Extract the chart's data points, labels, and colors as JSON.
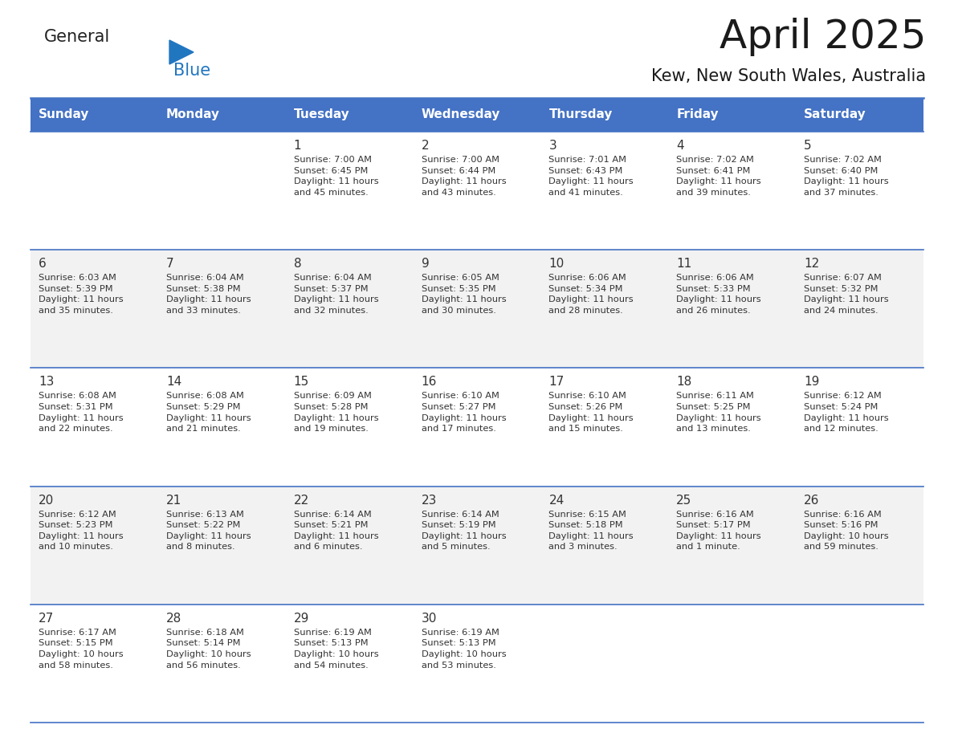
{
  "title": "April 2025",
  "subtitle": "Kew, New South Wales, Australia",
  "header_color": "#4472C4",
  "header_text_color": "#FFFFFF",
  "row_colors": [
    "#FFFFFF",
    "#F2F2F2"
  ],
  "text_color": "#333333",
  "border_color": "#4472C4",
  "days_of_week": [
    "Sunday",
    "Monday",
    "Tuesday",
    "Wednesday",
    "Thursday",
    "Friday",
    "Saturday"
  ],
  "weeks": [
    [
      {
        "day": "",
        "info": ""
      },
      {
        "day": "",
        "info": ""
      },
      {
        "day": "1",
        "info": "Sunrise: 7:00 AM\nSunset: 6:45 PM\nDaylight: 11 hours\nand 45 minutes."
      },
      {
        "day": "2",
        "info": "Sunrise: 7:00 AM\nSunset: 6:44 PM\nDaylight: 11 hours\nand 43 minutes."
      },
      {
        "day": "3",
        "info": "Sunrise: 7:01 AM\nSunset: 6:43 PM\nDaylight: 11 hours\nand 41 minutes."
      },
      {
        "day": "4",
        "info": "Sunrise: 7:02 AM\nSunset: 6:41 PM\nDaylight: 11 hours\nand 39 minutes."
      },
      {
        "day": "5",
        "info": "Sunrise: 7:02 AM\nSunset: 6:40 PM\nDaylight: 11 hours\nand 37 minutes."
      }
    ],
    [
      {
        "day": "6",
        "info": "Sunrise: 6:03 AM\nSunset: 5:39 PM\nDaylight: 11 hours\nand 35 minutes."
      },
      {
        "day": "7",
        "info": "Sunrise: 6:04 AM\nSunset: 5:38 PM\nDaylight: 11 hours\nand 33 minutes."
      },
      {
        "day": "8",
        "info": "Sunrise: 6:04 AM\nSunset: 5:37 PM\nDaylight: 11 hours\nand 32 minutes."
      },
      {
        "day": "9",
        "info": "Sunrise: 6:05 AM\nSunset: 5:35 PM\nDaylight: 11 hours\nand 30 minutes."
      },
      {
        "day": "10",
        "info": "Sunrise: 6:06 AM\nSunset: 5:34 PM\nDaylight: 11 hours\nand 28 minutes."
      },
      {
        "day": "11",
        "info": "Sunrise: 6:06 AM\nSunset: 5:33 PM\nDaylight: 11 hours\nand 26 minutes."
      },
      {
        "day": "12",
        "info": "Sunrise: 6:07 AM\nSunset: 5:32 PM\nDaylight: 11 hours\nand 24 minutes."
      }
    ],
    [
      {
        "day": "13",
        "info": "Sunrise: 6:08 AM\nSunset: 5:31 PM\nDaylight: 11 hours\nand 22 minutes."
      },
      {
        "day": "14",
        "info": "Sunrise: 6:08 AM\nSunset: 5:29 PM\nDaylight: 11 hours\nand 21 minutes."
      },
      {
        "day": "15",
        "info": "Sunrise: 6:09 AM\nSunset: 5:28 PM\nDaylight: 11 hours\nand 19 minutes."
      },
      {
        "day": "16",
        "info": "Sunrise: 6:10 AM\nSunset: 5:27 PM\nDaylight: 11 hours\nand 17 minutes."
      },
      {
        "day": "17",
        "info": "Sunrise: 6:10 AM\nSunset: 5:26 PM\nDaylight: 11 hours\nand 15 minutes."
      },
      {
        "day": "18",
        "info": "Sunrise: 6:11 AM\nSunset: 5:25 PM\nDaylight: 11 hours\nand 13 minutes."
      },
      {
        "day": "19",
        "info": "Sunrise: 6:12 AM\nSunset: 5:24 PM\nDaylight: 11 hours\nand 12 minutes."
      }
    ],
    [
      {
        "day": "20",
        "info": "Sunrise: 6:12 AM\nSunset: 5:23 PM\nDaylight: 11 hours\nand 10 minutes."
      },
      {
        "day": "21",
        "info": "Sunrise: 6:13 AM\nSunset: 5:22 PM\nDaylight: 11 hours\nand 8 minutes."
      },
      {
        "day": "22",
        "info": "Sunrise: 6:14 AM\nSunset: 5:21 PM\nDaylight: 11 hours\nand 6 minutes."
      },
      {
        "day": "23",
        "info": "Sunrise: 6:14 AM\nSunset: 5:19 PM\nDaylight: 11 hours\nand 5 minutes."
      },
      {
        "day": "24",
        "info": "Sunrise: 6:15 AM\nSunset: 5:18 PM\nDaylight: 11 hours\nand 3 minutes."
      },
      {
        "day": "25",
        "info": "Sunrise: 6:16 AM\nSunset: 5:17 PM\nDaylight: 11 hours\nand 1 minute."
      },
      {
        "day": "26",
        "info": "Sunrise: 6:16 AM\nSunset: 5:16 PM\nDaylight: 10 hours\nand 59 minutes."
      }
    ],
    [
      {
        "day": "27",
        "info": "Sunrise: 6:17 AM\nSunset: 5:15 PM\nDaylight: 10 hours\nand 58 minutes."
      },
      {
        "day": "28",
        "info": "Sunrise: 6:18 AM\nSunset: 5:14 PM\nDaylight: 10 hours\nand 56 minutes."
      },
      {
        "day": "29",
        "info": "Sunrise: 6:19 AM\nSunset: 5:13 PM\nDaylight: 10 hours\nand 54 minutes."
      },
      {
        "day": "30",
        "info": "Sunrise: 6:19 AM\nSunset: 5:13 PM\nDaylight: 10 hours\nand 53 minutes."
      },
      {
        "day": "",
        "info": ""
      },
      {
        "day": "",
        "info": ""
      },
      {
        "day": "",
        "info": ""
      }
    ]
  ],
  "logo_general_color": "#222222",
  "logo_blue_color": "#2176C0",
  "logo_triangle_color": "#2176C0",
  "fig_width": 11.88,
  "fig_height": 9.18,
  "dpi": 100
}
